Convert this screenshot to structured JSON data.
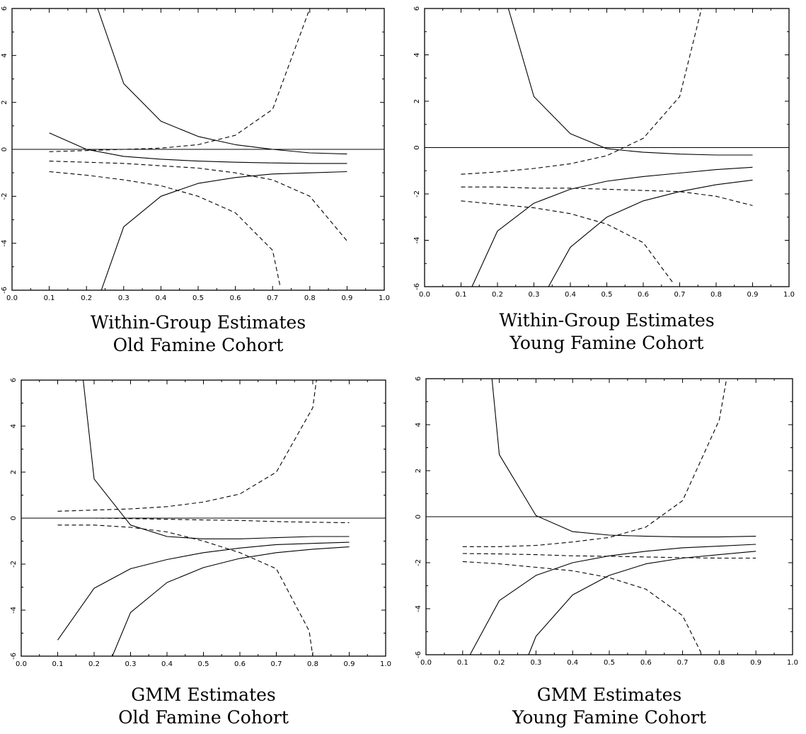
{
  "chart_data": [
    {
      "type": "line",
      "caption": [
        "Within-Group Estimates",
        "Old Famine Cohort"
      ],
      "xlim": [
        0.0,
        1.0
      ],
      "ylim": [
        -6,
        6
      ],
      "xticks": [
        "0.0",
        "0.1",
        "0.2",
        "0.3",
        "0.4",
        "0.5",
        "0.6",
        "0.7",
        "0.8",
        "0.9",
        "1.0"
      ],
      "yticks": [
        "-6",
        "-4",
        "-2",
        "0",
        "2",
        "4",
        "6"
      ],
      "zero_line": true,
      "series": [
        {
          "style": "solid",
          "x": [
            0.23,
            0.3,
            0.4,
            0.5,
            0.6,
            0.7,
            0.8,
            0.9
          ],
          "y": [
            6.0,
            2.8,
            1.2,
            0.55,
            0.2,
            0.0,
            -0.15,
            -0.2
          ]
        },
        {
          "style": "solid",
          "x": [
            0.1,
            0.2,
            0.3,
            0.4,
            0.5,
            0.6,
            0.7,
            0.8,
            0.9
          ],
          "y": [
            0.7,
            0.0,
            -0.3,
            -0.42,
            -0.5,
            -0.55,
            -0.58,
            -0.6,
            -0.6
          ]
        },
        {
          "style": "solid",
          "x": [
            0.24,
            0.3,
            0.4,
            0.5,
            0.6,
            0.7,
            0.8,
            0.9
          ],
          "y": [
            -6.0,
            -3.3,
            -2.0,
            -1.45,
            -1.2,
            -1.05,
            -1.0,
            -0.95
          ]
        },
        {
          "style": "dashed",
          "x": [
            0.1,
            0.2,
            0.3,
            0.4,
            0.5,
            0.6,
            0.7,
            0.8
          ],
          "y": [
            -0.1,
            -0.05,
            0.0,
            0.05,
            0.2,
            0.6,
            1.7,
            6.0
          ]
        },
        {
          "style": "dashed",
          "x": [
            0.1,
            0.2,
            0.3,
            0.4,
            0.5,
            0.6,
            0.7,
            0.8,
            0.9
          ],
          "y": [
            -0.5,
            -0.55,
            -0.6,
            -0.7,
            -0.8,
            -1.0,
            -1.3,
            -2.0,
            -3.9
          ]
        },
        {
          "style": "dashed",
          "x": [
            0.1,
            0.2,
            0.3,
            0.4,
            0.5,
            0.6,
            0.7,
            0.72
          ],
          "y": [
            -0.95,
            -1.1,
            -1.3,
            -1.55,
            -2.0,
            -2.7,
            -4.3,
            -5.8
          ]
        }
      ]
    },
    {
      "type": "line",
      "caption": [
        "Within-Group Estimates",
        "Young Famine Cohort"
      ],
      "xlim": [
        0.0,
        1.0
      ],
      "ylim": [
        -6,
        6
      ],
      "xticks": [
        "0.0",
        "0.1",
        "0.2",
        "0.3",
        "0.4",
        "0.5",
        "0.6",
        "0.7",
        "0.8",
        "0.9",
        "1.0"
      ],
      "yticks": [
        "-6",
        "-4",
        "-2",
        "0",
        "2",
        "4",
        "6"
      ],
      "zero_line": true,
      "series": [
        {
          "style": "solid",
          "x": [
            0.23,
            0.3,
            0.4,
            0.5,
            0.6,
            0.7,
            0.8,
            0.9
          ],
          "y": [
            6.0,
            2.2,
            0.6,
            -0.05,
            -0.2,
            -0.28,
            -0.32,
            -0.32
          ]
        },
        {
          "style": "solid",
          "x": [
            0.13,
            0.2,
            0.3,
            0.4,
            0.5,
            0.6,
            0.7,
            0.8,
            0.9
          ],
          "y": [
            -6.0,
            -3.6,
            -2.4,
            -1.8,
            -1.45,
            -1.25,
            -1.1,
            -0.95,
            -0.85
          ]
        },
        {
          "style": "solid",
          "x": [
            0.34,
            0.4,
            0.5,
            0.6,
            0.7,
            0.8,
            0.9
          ],
          "y": [
            -6.0,
            -4.3,
            -3.0,
            -2.3,
            -1.9,
            -1.6,
            -1.4
          ]
        },
        {
          "style": "dashed",
          "x": [
            0.1,
            0.2,
            0.3,
            0.4,
            0.5,
            0.6,
            0.7,
            0.76
          ],
          "y": [
            -1.15,
            -1.05,
            -0.9,
            -0.7,
            -0.35,
            0.4,
            2.2,
            6.0
          ]
        },
        {
          "style": "dashed",
          "x": [
            0.1,
            0.2,
            0.3,
            0.4,
            0.5,
            0.6,
            0.7,
            0.8,
            0.9
          ],
          "y": [
            -1.7,
            -1.7,
            -1.75,
            -1.75,
            -1.8,
            -1.85,
            -1.9,
            -2.1,
            -2.5
          ]
        },
        {
          "style": "dashed",
          "x": [
            0.1,
            0.2,
            0.3,
            0.4,
            0.5,
            0.6,
            0.68
          ],
          "y": [
            -2.3,
            -2.45,
            -2.6,
            -2.85,
            -3.3,
            -4.1,
            -5.8
          ]
        }
      ]
    },
    {
      "type": "line",
      "caption": [
        "GMM Estimates",
        "Old Famine Cohort"
      ],
      "xlim": [
        0.0,
        1.0
      ],
      "ylim": [
        -6,
        6
      ],
      "xticks": [
        "0.0",
        "0.1",
        "0.2",
        "0.3",
        "0.4",
        "0.5",
        "0.6",
        "0.7",
        "0.8",
        "0.9",
        "1.0"
      ],
      "yticks": [
        "-6",
        "-4",
        "-2",
        "0",
        "2",
        "4",
        "6"
      ],
      "zero_line": true,
      "series": [
        {
          "style": "solid",
          "x": [
            0.17,
            0.2,
            0.3,
            0.4,
            0.5,
            0.6,
            0.7,
            0.8,
            0.9
          ],
          "y": [
            6.0,
            1.7,
            -0.3,
            -0.8,
            -0.9,
            -0.9,
            -0.85,
            -0.8,
            -0.8
          ]
        },
        {
          "style": "solid",
          "x": [
            0.1,
            0.2,
            0.3,
            0.4,
            0.5,
            0.6,
            0.7,
            0.8,
            0.9
          ],
          "y": [
            -5.3,
            -3.05,
            -2.2,
            -1.8,
            -1.5,
            -1.3,
            -1.15,
            -1.1,
            -1.05
          ]
        },
        {
          "style": "solid",
          "x": [
            0.25,
            0.3,
            0.4,
            0.5,
            0.6,
            0.7,
            0.8,
            0.9
          ],
          "y": [
            -6.0,
            -4.1,
            -2.8,
            -2.15,
            -1.75,
            -1.5,
            -1.35,
            -1.25
          ]
        },
        {
          "style": "dashed",
          "x": [
            0.1,
            0.2,
            0.3,
            0.4,
            0.5,
            0.6,
            0.7,
            0.8,
            0.81
          ],
          "y": [
            0.3,
            0.35,
            0.4,
            0.5,
            0.7,
            1.05,
            2.0,
            4.8,
            6.0
          ]
        },
        {
          "style": "dashed",
          "x": [
            0.1,
            0.2,
            0.3,
            0.4,
            0.5,
            0.6,
            0.7,
            0.8,
            0.9
          ],
          "y": [
            0.0,
            0.0,
            -0.02,
            -0.05,
            -0.08,
            -0.1,
            -0.15,
            -0.18,
            -0.2
          ]
        },
        {
          "style": "dashed",
          "x": [
            0.1,
            0.2,
            0.3,
            0.4,
            0.5,
            0.6,
            0.7,
            0.79,
            0.8
          ],
          "y": [
            -0.3,
            -0.3,
            -0.4,
            -0.6,
            -1.0,
            -1.5,
            -2.2,
            -4.9,
            -6.0
          ]
        }
      ]
    },
    {
      "type": "line",
      "caption": [
        "GMM Estimates",
        "Young Famine Cohort"
      ],
      "xlim": [
        0.0,
        1.0
      ],
      "ylim": [
        -6,
        6
      ],
      "xticks": [
        "0.0",
        "0.1",
        "0.2",
        "0.3",
        "0.4",
        "0.5",
        "0.6",
        "0.7",
        "0.8",
        "0.9",
        "1.0"
      ],
      "yticks": [
        "-6",
        "-4",
        "-2",
        "0",
        "2",
        "4",
        "6"
      ],
      "zero_line": true,
      "series": [
        {
          "style": "solid",
          "x": [
            0.18,
            0.2,
            0.3,
            0.4,
            0.5,
            0.6,
            0.7,
            0.8,
            0.9
          ],
          "y": [
            6.0,
            2.7,
            0.05,
            -0.65,
            -0.8,
            -0.85,
            -0.88,
            -0.88,
            -0.85
          ]
        },
        {
          "style": "solid",
          "x": [
            0.12,
            0.2,
            0.3,
            0.4,
            0.5,
            0.6,
            0.7,
            0.8,
            0.9
          ],
          "y": [
            -6.0,
            -3.65,
            -2.55,
            -2.0,
            -1.7,
            -1.5,
            -1.35,
            -1.28,
            -1.2
          ]
        },
        {
          "style": "solid",
          "x": [
            0.28,
            0.3,
            0.4,
            0.5,
            0.6,
            0.7,
            0.8,
            0.9
          ],
          "y": [
            -6.0,
            -5.2,
            -3.4,
            -2.55,
            -2.05,
            -1.8,
            -1.65,
            -1.5
          ]
        },
        {
          "style": "dashed",
          "x": [
            0.1,
            0.2,
            0.3,
            0.4,
            0.5,
            0.6,
            0.7,
            0.8,
            0.82
          ],
          "y": [
            -1.3,
            -1.3,
            -1.25,
            -1.1,
            -0.9,
            -0.45,
            0.7,
            4.2,
            6.0
          ]
        },
        {
          "style": "dashed",
          "x": [
            0.1,
            0.2,
            0.3,
            0.4,
            0.5,
            0.6,
            0.7,
            0.8,
            0.9
          ],
          "y": [
            -1.6,
            -1.62,
            -1.65,
            -1.7,
            -1.72,
            -1.75,
            -1.78,
            -1.8,
            -1.8
          ]
        },
        {
          "style": "dashed",
          "x": [
            0.1,
            0.2,
            0.3,
            0.4,
            0.5,
            0.6,
            0.7,
            0.75
          ],
          "y": [
            -1.95,
            -2.05,
            -2.2,
            -2.35,
            -2.65,
            -3.15,
            -4.3,
            -5.9
          ]
        }
      ]
    }
  ]
}
